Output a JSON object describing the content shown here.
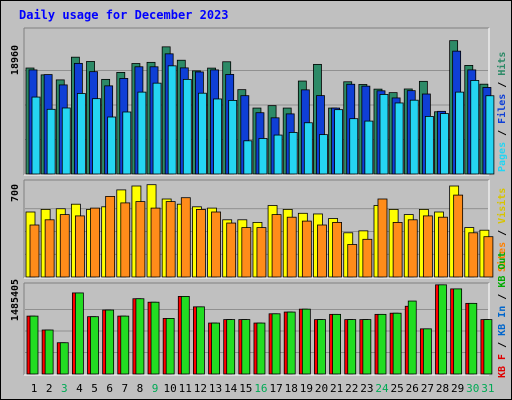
{
  "chart_data": [
    {
      "type": "bar",
      "title": "Daily usage for December 2023",
      "ylabel_max": "18960",
      "legend": [
        "Pages",
        "Files",
        "Hits"
      ],
      "categories": [
        "1",
        "2",
        "3",
        "4",
        "5",
        "6",
        "7",
        "8",
        "9",
        "10",
        "11",
        "12",
        "13",
        "14",
        "15",
        "16",
        "17",
        "18",
        "19",
        "20",
        "21",
        "22",
        "23",
        "24",
        "25",
        "26",
        "27",
        "28",
        "29",
        "30",
        "31"
      ],
      "ylim": [
        0,
        18960
      ],
      "series": [
        {
          "name": "Hits",
          "values": [
            14560,
            13620,
            12930,
            16050,
            15460,
            13000,
            13960,
            15180,
            15340,
            17470,
            15630,
            14170,
            14550,
            15420,
            11590,
            9060,
            9390,
            9060,
            12770,
            15060,
            9060,
            12670,
            12300,
            11660,
            11180,
            11680,
            12730,
            8550,
            18320,
            14920,
            12340
          ]
        },
        {
          "name": "Files",
          "values": [
            14300,
            13660,
            12240,
            15200,
            14060,
            12110,
            13130,
            14730,
            14730,
            16510,
            14580,
            14020,
            14300,
            13680,
            10760,
            8420,
            7720,
            8260,
            11560,
            10770,
            9060,
            12330,
            12070,
            11430,
            10450,
            11450,
            10990,
            8610,
            16880,
            14300,
            11890
          ]
        },
        {
          "name": "Pages",
          "values": [
            10570,
            8890,
            9070,
            11060,
            10350,
            7830,
            8520,
            11250,
            12480,
            14860,
            13000,
            11100,
            10310,
            10110,
            4560,
            4880,
            5350,
            5710,
            7040,
            5410,
            8840,
            7600,
            7270,
            10930,
            9760,
            10140,
            7910,
            8300,
            11250,
            12850,
            10750
          ]
        }
      ],
      "colors": {
        "Hits": "#2d8a67",
        "Files": "#0f3fd6",
        "Pages": "#25d5f2",
        "Hits_label": "#2d8a67",
        "Files_label": "#0f3fd6",
        "Pages_label": "#25d5f2"
      }
    },
    {
      "type": "bar",
      "ylabel_max": "700",
      "legend": [
        "Visits",
        "Sites"
      ],
      "categories": [
        "1",
        "2",
        "3",
        "4",
        "5",
        "6",
        "7",
        "8",
        "9",
        "10",
        "11",
        "12",
        "13",
        "14",
        "15",
        "16",
        "17",
        "18",
        "19",
        "20",
        "21",
        "22",
        "23",
        "24",
        "25",
        "26",
        "27",
        "28",
        "29",
        "30",
        "31"
      ],
      "ylim": [
        0,
        700
      ],
      "series": [
        {
          "name": "Visits",
          "values": [
            500,
            520,
            525,
            560,
            520,
            540,
            670,
            700,
            710,
            600,
            560,
            540,
            530,
            440,
            440,
            420,
            550,
            520,
            490,
            485,
            450,
            340,
            355,
            550,
            520,
            480,
            520,
            500,
            700,
            380,
            360
          ]
        },
        {
          "name": "Sites",
          "values": [
            400,
            440,
            480,
            470,
            530,
            620,
            570,
            580,
            530,
            580,
            610,
            520,
            500,
            415,
            380,
            380,
            480,
            460,
            430,
            400,
            420,
            250,
            290,
            600,
            420,
            440,
            470,
            460,
            630,
            340,
            310
          ]
        }
      ],
      "colors": {
        "Visits": "#ffff00",
        "Sites": "#ff8c1a",
        "Visits_label": "#d8c400",
        "Sites_label": "#ff8000"
      }
    },
    {
      "type": "bar",
      "ylabel_max": "1485405",
      "legend": [
        "KB F",
        "KB In",
        "KB Out"
      ],
      "categories": [
        "1",
        "2",
        "3",
        "4",
        "5",
        "6",
        "7",
        "8",
        "9",
        "10",
        "11",
        "12",
        "13",
        "14",
        "15",
        "16",
        "17",
        "18",
        "19",
        "20",
        "21",
        "22",
        "23",
        "24",
        "25",
        "26",
        "27",
        "28",
        "29",
        "30",
        "31"
      ],
      "ylim": [
        0,
        1485405
      ],
      "series": [
        {
          "name": "KB F",
          "values": [
            1000000,
            760000,
            540000,
            1400000,
            990000,
            1105000,
            1000000,
            1300000,
            1240000,
            960000,
            1340000,
            1160000,
            880000,
            940000,
            940000,
            880000,
            1040000,
            1070000,
            1120000,
            940000,
            1030000,
            940000,
            940000,
            1030000,
            1050000,
            1170000,
            780000,
            1540000,
            1470000,
            1220000,
            940000
          ]
        },
        {
          "name": "KB Out",
          "values": [
            1000000,
            760000,
            540000,
            1400000,
            990000,
            1105000,
            1000000,
            1300000,
            1240000,
            960000,
            1340000,
            1160000,
            880000,
            940000,
            940000,
            880000,
            1040000,
            1070000,
            1120000,
            940000,
            1030000,
            940000,
            940000,
            1030000,
            1050000,
            1260000,
            780000,
            1540000,
            1470000,
            1220000,
            940000
          ]
        }
      ],
      "colors": {
        "KB F": "#ff0000",
        "KB In": "#0f7fe0",
        "KB Out": "#22dd22",
        "KB F_label": "#e00000",
        "KB In_label": "#0066cc",
        "KB Out_label": "#00aa00"
      }
    }
  ],
  "x_labels": [
    "1",
    "2",
    "3",
    "4",
    "5",
    "6",
    "7",
    "8",
    "9",
    "10",
    "11",
    "12",
    "13",
    "14",
    "15",
    "16",
    "17",
    "18",
    "19",
    "20",
    "21",
    "22",
    "23",
    "24",
    "25",
    "26",
    "27",
    "28",
    "29",
    "30",
    "31"
  ],
  "weekend_days": [
    "3",
    "9",
    "16",
    "24",
    "30",
    "31"
  ],
  "colors": {
    "title": "#0000ff",
    "weekday_label": "#000000",
    "weekend_label": "#00aa55",
    "frame": "#c0c0c0",
    "panel_bg": "#c0c0c0"
  }
}
